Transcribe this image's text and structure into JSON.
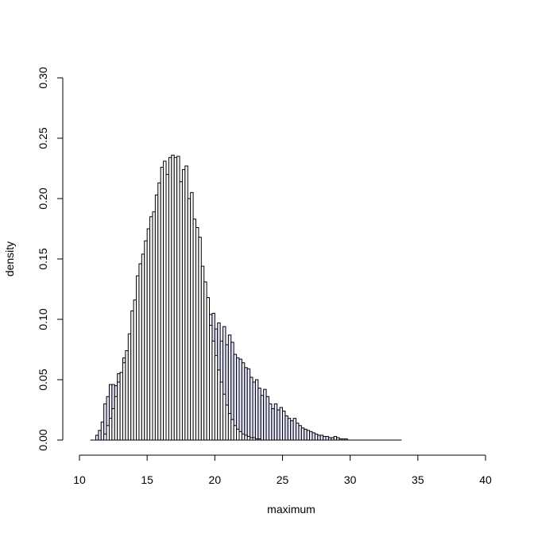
{
  "chart_data": {
    "type": "bar",
    "title": "",
    "xlabel": "maximum",
    "ylabel": "density",
    "xlim": [
      10,
      40
    ],
    "ylim": [
      0,
      0.3
    ],
    "x_ticks": [
      "10",
      "15",
      "20",
      "25",
      "30",
      "35",
      "40"
    ],
    "y_ticks": [
      "0.00",
      "0.05",
      "0.10",
      "0.15",
      "0.20",
      "0.25",
      "0.30"
    ],
    "grid": false,
    "baseline_range": [
      10.8,
      33.8
    ],
    "bin_width": 0.2,
    "series": [
      {
        "fill": "#e8e8ff",
        "bins_start": 11.2,
        "values": [
          0.004,
          0.008,
          0.015,
          0.03,
          0.036,
          0.046,
          0.046,
          0.045,
          0.055,
          0.056,
          0.068,
          0.066,
          0.072,
          0.072,
          0.076,
          0.076,
          0.08,
          0.078,
          0.085,
          0.09,
          0.092,
          0.094,
          0.096,
          0.098,
          0.099,
          0.101,
          0.103,
          0.105,
          0.107,
          0.11,
          0.112,
          0.113,
          0.115,
          0.116,
          0.118,
          0.114,
          0.108,
          0.11,
          0.113,
          0.112,
          0.111,
          0.109,
          0.104,
          0.105,
          0.092,
          0.097,
          0.082,
          0.094,
          0.079,
          0.087,
          0.081,
          0.071,
          0.068,
          0.067,
          0.064,
          0.06,
          0.059,
          0.052,
          0.048,
          0.05,
          0.043,
          0.037,
          0.042,
          0.036,
          0.03,
          0.026,
          0.03,
          0.025,
          0.027,
          0.024,
          0.02,
          0.018,
          0.016,
          0.018,
          0.014,
          0.012,
          0.01,
          0.009,
          0.008,
          0.007,
          0.006,
          0.005,
          0.004,
          0.004,
          0.003,
          0.003,
          0.002,
          0.002,
          0.003,
          0.002,
          0.001,
          0.001,
          0.001
        ]
      },
      {
        "fill": "#ffffff",
        "bins_start": 11.8,
        "values": [
          0.005,
          0.012,
          0.018,
          0.026,
          0.036,
          0.048,
          0.056,
          0.064,
          0.074,
          0.088,
          0.107,
          0.116,
          0.136,
          0.146,
          0.154,
          0.165,
          0.175,
          0.185,
          0.189,
          0.203,
          0.213,
          0.226,
          0.231,
          0.22,
          0.234,
          0.236,
          0.234,
          0.235,
          0.214,
          0.224,
          0.227,
          0.2,
          0.205,
          0.183,
          0.176,
          0.168,
          0.144,
          0.131,
          0.118,
          0.095,
          0.082,
          0.07,
          0.058,
          0.048,
          0.038,
          0.029,
          0.022,
          0.017,
          0.012,
          0.009,
          0.007,
          0.005,
          0.004,
          0.003,
          0.002,
          0.002,
          0.001,
          0.001
        ]
      }
    ]
  }
}
